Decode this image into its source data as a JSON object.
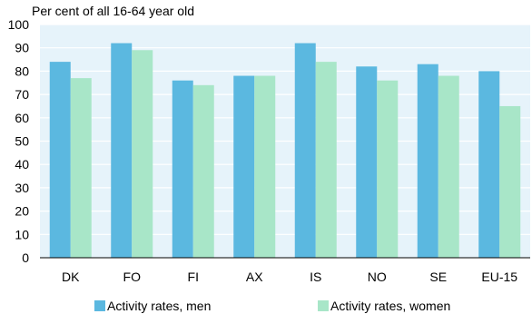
{
  "chart_data": {
    "type": "bar",
    "title": "Per cent of all 16-64 year old",
    "xlabel": "",
    "ylabel": "",
    "categories": [
      "DK",
      "FO",
      "FI",
      "AX",
      "IS",
      "NO",
      "SE",
      "EU-15"
    ],
    "series": [
      {
        "name": "Activity rates, men",
        "color": "#5bb8e0",
        "values": [
          84,
          92,
          76,
          78,
          92,
          82,
          83,
          80
        ]
      },
      {
        "name": "Activity rates, women",
        "color": "#a8e6c8",
        "values": [
          77,
          89,
          74,
          78,
          84,
          76,
          78,
          65
        ]
      }
    ],
    "ylim": [
      0,
      100
    ],
    "yticks": [
      0,
      10,
      20,
      30,
      40,
      50,
      60,
      70,
      80,
      90,
      100
    ],
    "plot_background": "#e6f3fa",
    "grid": "horizontal",
    "legend_position": "bottom"
  }
}
